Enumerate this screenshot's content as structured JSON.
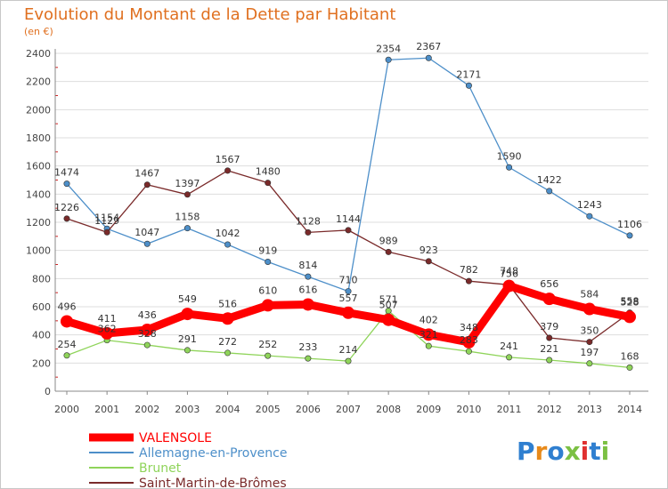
{
  "chart_data": {
    "type": "line",
    "title": "Evolution du Montant de la Dette par Habitant",
    "subtitle": "(en €)",
    "xlabel": "",
    "ylabel": "",
    "x": [
      "2000",
      "2001",
      "2002",
      "2003",
      "2004",
      "2005",
      "2006",
      "2007",
      "2008",
      "2009",
      "2010",
      "2011",
      "2012",
      "2013",
      "2014"
    ],
    "ylim": [
      0,
      2400
    ],
    "yticks": [
      0,
      200,
      400,
      600,
      800,
      1000,
      1200,
      1400,
      1600,
      1800,
      2000,
      2200,
      2400
    ],
    "grid": true,
    "legend_position": "bottom-left",
    "series": [
      {
        "name": "VALENSOLE",
        "color": "#ff0000",
        "values": [
          496,
          411,
          436,
          549,
          516,
          610,
          616,
          557,
          507,
          402,
          348,
          748,
          656,
          584,
          528
        ]
      },
      {
        "name": "Allemagne-en-Provence",
        "color": "#4d8fc9",
        "values": [
          1474,
          1154,
          1047,
          1158,
          1042,
          919,
          814,
          710,
          2354,
          2367,
          2171,
          1590,
          1422,
          1243,
          1106
        ]
      },
      {
        "name": "Brunet",
        "color": "#8fd45a",
        "values": [
          254,
          362,
          328,
          291,
          272,
          252,
          233,
          214,
          571,
          321,
          283,
          241,
          221,
          197,
          168
        ]
      },
      {
        "name": "Saint-Martin-de-Brômes",
        "color": "#7a2a2a",
        "values": [
          1226,
          1129,
          1467,
          1397,
          1567,
          1480,
          1128,
          1144,
          989,
          923,
          782,
          756,
          379,
          350,
          558
        ]
      }
    ]
  },
  "logo": {
    "text": "Proxiti"
  }
}
